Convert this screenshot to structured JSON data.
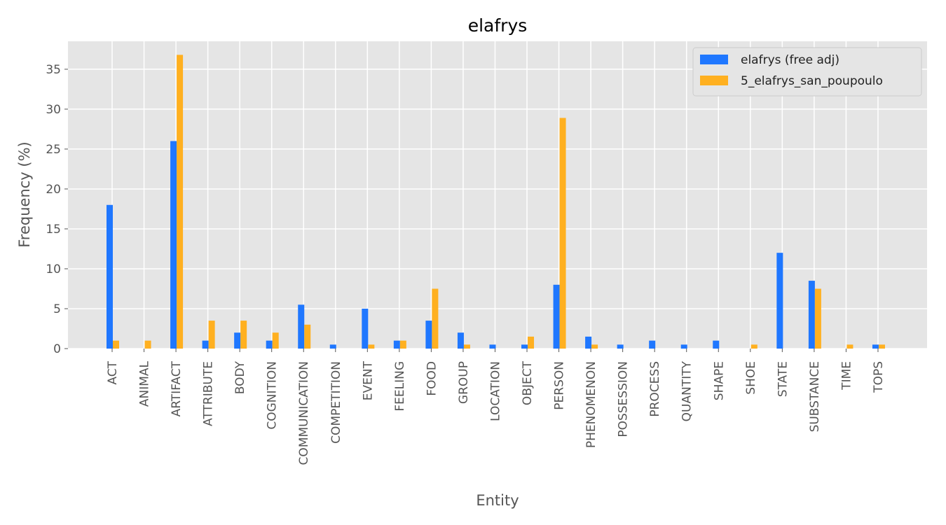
{
  "chart_data": {
    "type": "bar",
    "title": "elafrys",
    "xlabel": "Entity",
    "ylabel": "Frequency (%)",
    "ylim": [
      0,
      38.5
    ],
    "yticks": [
      0,
      5,
      10,
      15,
      20,
      25,
      30,
      35
    ],
    "grid": true,
    "legend_position": "top-right",
    "categories": [
      "ACT",
      "ANIMAL",
      "ARTIFACT",
      "ATTRIBUTE",
      "BODY",
      "COGNITION",
      "COMMUNICATION",
      "COMPETITION",
      "EVENT",
      "FEELING",
      "FOOD",
      "GROUP",
      "LOCATION",
      "OBJECT",
      "PERSON",
      "PHENOMENON",
      "POSSESSION",
      "PROCESS",
      "QUANTITY",
      "SHAPE",
      "SHOE",
      "STATE",
      "SUBSTANCE",
      "TIME",
      "TOPS"
    ],
    "series": [
      {
        "name": "elafrys (free adj)",
        "color": "#1f77ff",
        "values": [
          18,
          0,
          26,
          1,
          2,
          1,
          5.5,
          0.5,
          5,
          1,
          3.5,
          2,
          0.5,
          0.5,
          8,
          1.5,
          0.5,
          1,
          0.5,
          1,
          0,
          12,
          8.5,
          0,
          0.5
        ]
      },
      {
        "name": "5_elafrys_san_poupoulo",
        "color": "#ffb020",
        "values": [
          1,
          1,
          36.8,
          3.5,
          3.5,
          2,
          3,
          0,
          0.5,
          1,
          7.5,
          0.5,
          0,
          1.5,
          28.9,
          0.5,
          0,
          0,
          0,
          0,
          0.5,
          0,
          7.5,
          0.5,
          0.5
        ]
      }
    ]
  }
}
